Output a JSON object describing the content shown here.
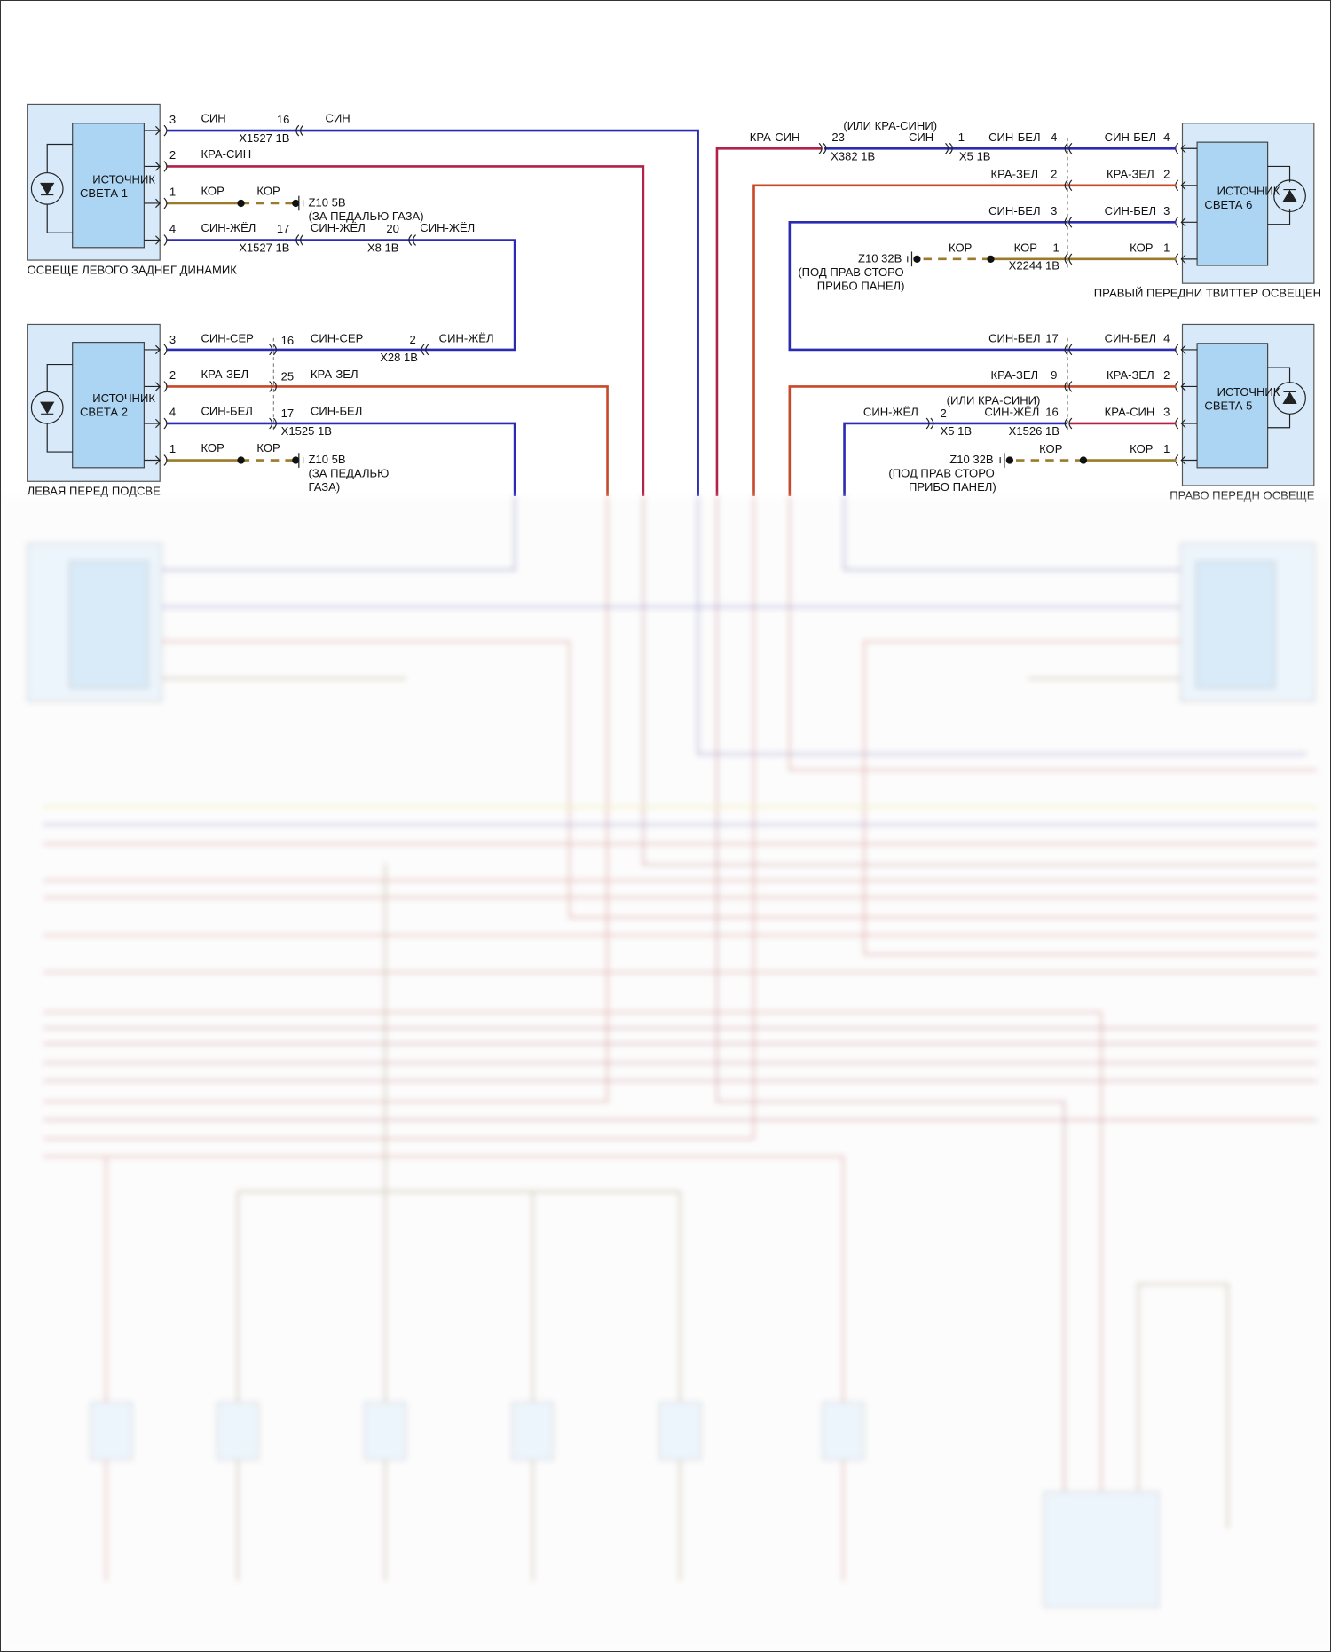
{
  "colors": {
    "blue": "#2a2ab2",
    "red_blue": "#b32049",
    "red_green": "#c8482a",
    "brown": "#9b7b2b",
    "component_fill": "#d8eaf9"
  },
  "src1": {
    "name1": "ИСТОЧНИК",
    "name2": "СВЕТА 1",
    "caption": "ОСВЕЩЕ ЛЕВОГО ЗАДНЕГ ДИНАМИК",
    "p3": "3",
    "p3_wire": "СИН",
    "p3_c": "16",
    "p3_conn": "X1527 1B",
    "p3_wire2": "СИН",
    "p2": "2",
    "p2_wire": "КРА-СИН",
    "p1": "1",
    "p1_wire": "КОР",
    "p1_wire2": "КОР",
    "gnd": "Z10 5B",
    "gnd_loc": "(ЗА ПЕДАЛЬЮ ГАЗА)",
    "p4": "4",
    "p4_wire": "СИН-ЖЁЛ",
    "p4_c": "17",
    "p4_conn": "X1527 1B",
    "p4_wire2": "СИН-ЖЁЛ",
    "p4_c2": "20",
    "p4_conn2": "X8 1B",
    "p4_wire3": "СИН-ЖЁЛ"
  },
  "src2": {
    "name1": "ИСТОЧНИК",
    "name2": "СВЕТА 2",
    "caption": "ЛЕВАЯ ПЕРЕД ПОДСВЕ",
    "p3": "3",
    "p3_wire": "СИН-СЕР",
    "p3_c": "16",
    "p3_wire2": "СИН-СЕР",
    "p3_c2": "2",
    "p3_conn2": "X28 1B",
    "p3_wire3": "СИН-ЖЁЛ",
    "p2": "2",
    "p2_wire": "КРА-ЗЕЛ",
    "p2_c": "25",
    "p2_wire2": "КРА-ЗЕЛ",
    "p4": "4",
    "p4_wire": "СИН-БЕЛ",
    "p4_c": "17",
    "p4_wire2": "СИН-БЕЛ",
    "conn": "X1525 1B",
    "p1": "1",
    "p1_wire": "КОР",
    "p1_wire2": "КОР",
    "gnd": "Z10 5B",
    "gnd_loc1": "(ЗА ПЕДАЛЬЮ",
    "gnd_loc2": "ГАЗА)"
  },
  "src6": {
    "name1": "ИСТОЧНИК",
    "name2": "СВЕТА 6",
    "caption": "ПРАВЫЙ ПЕРЕДНИ ТВИТТЕР ОСВЕЩЕН",
    "p4_far": "КРА-СИН",
    "p4_c23": "23",
    "p4_conn382": "X382 1B",
    "alt": "(ИЛИ КРА-СИНИ)",
    "p4_sin": "СИН",
    "p4_c1": "1",
    "p4_conn5": "X5 1B",
    "p4_wire": "СИН-БЕЛ",
    "p4_c": "4",
    "p4_wire2": "СИН-БЕЛ",
    "p4": "4",
    "p2_wire": "КРА-ЗЕЛ",
    "p2_c": "2",
    "p2_wire2": "КРА-ЗЕЛ",
    "p2": "2",
    "p3_wire": "СИН-БЕЛ",
    "p3_c": "3",
    "p3_wire2": "СИН-БЕЛ",
    "p3": "3",
    "gnd": "Z10 32B",
    "gnd_loc1": "(ПОД ПРАВ СТОРО",
    "gnd_loc2": "ПРИБО ПАНЕЛ)",
    "p1_wire": "КОР",
    "p1_wire2": "КОР",
    "p1_c": "1",
    "p1_conn": "X2244 1B",
    "p1_wire3": "КОР",
    "p1": "1"
  },
  "src5": {
    "name1": "ИСТОЧНИК",
    "name2": "СВЕТА 5",
    "caption": "ПРАВО ПЕРЕДН ОСВЕЩЕ",
    "p4_wire": "СИН-БЕЛ",
    "p4_c": "17",
    "p4_wire2": "СИН-БЕЛ",
    "p4": "4",
    "p2_wire": "КРА-ЗЕЛ",
    "p2_c": "9",
    "p2_wire2": "КРА-ЗЕЛ",
    "p2": "2",
    "p3_far": "СИН-ЖЁЛ",
    "p3_c2": "2",
    "p3_conn5": "X5 1B",
    "alt": "(ИЛИ КРА-СИНИ)",
    "p3_wire": "СИН-ЖЁЛ",
    "p3_c": "16",
    "p3_conn": "X1526 1B",
    "p3_wire2": "КРА-СИН",
    "p3": "3",
    "gnd": "Z10 32B",
    "gnd_loc1": "(ПОД ПРАВ СТОРО",
    "gnd_loc2": "ПРИБО ПАНЕЛ)",
    "p1_wire": "КОР",
    "p1_wire2": "КОР",
    "p1": "1"
  }
}
